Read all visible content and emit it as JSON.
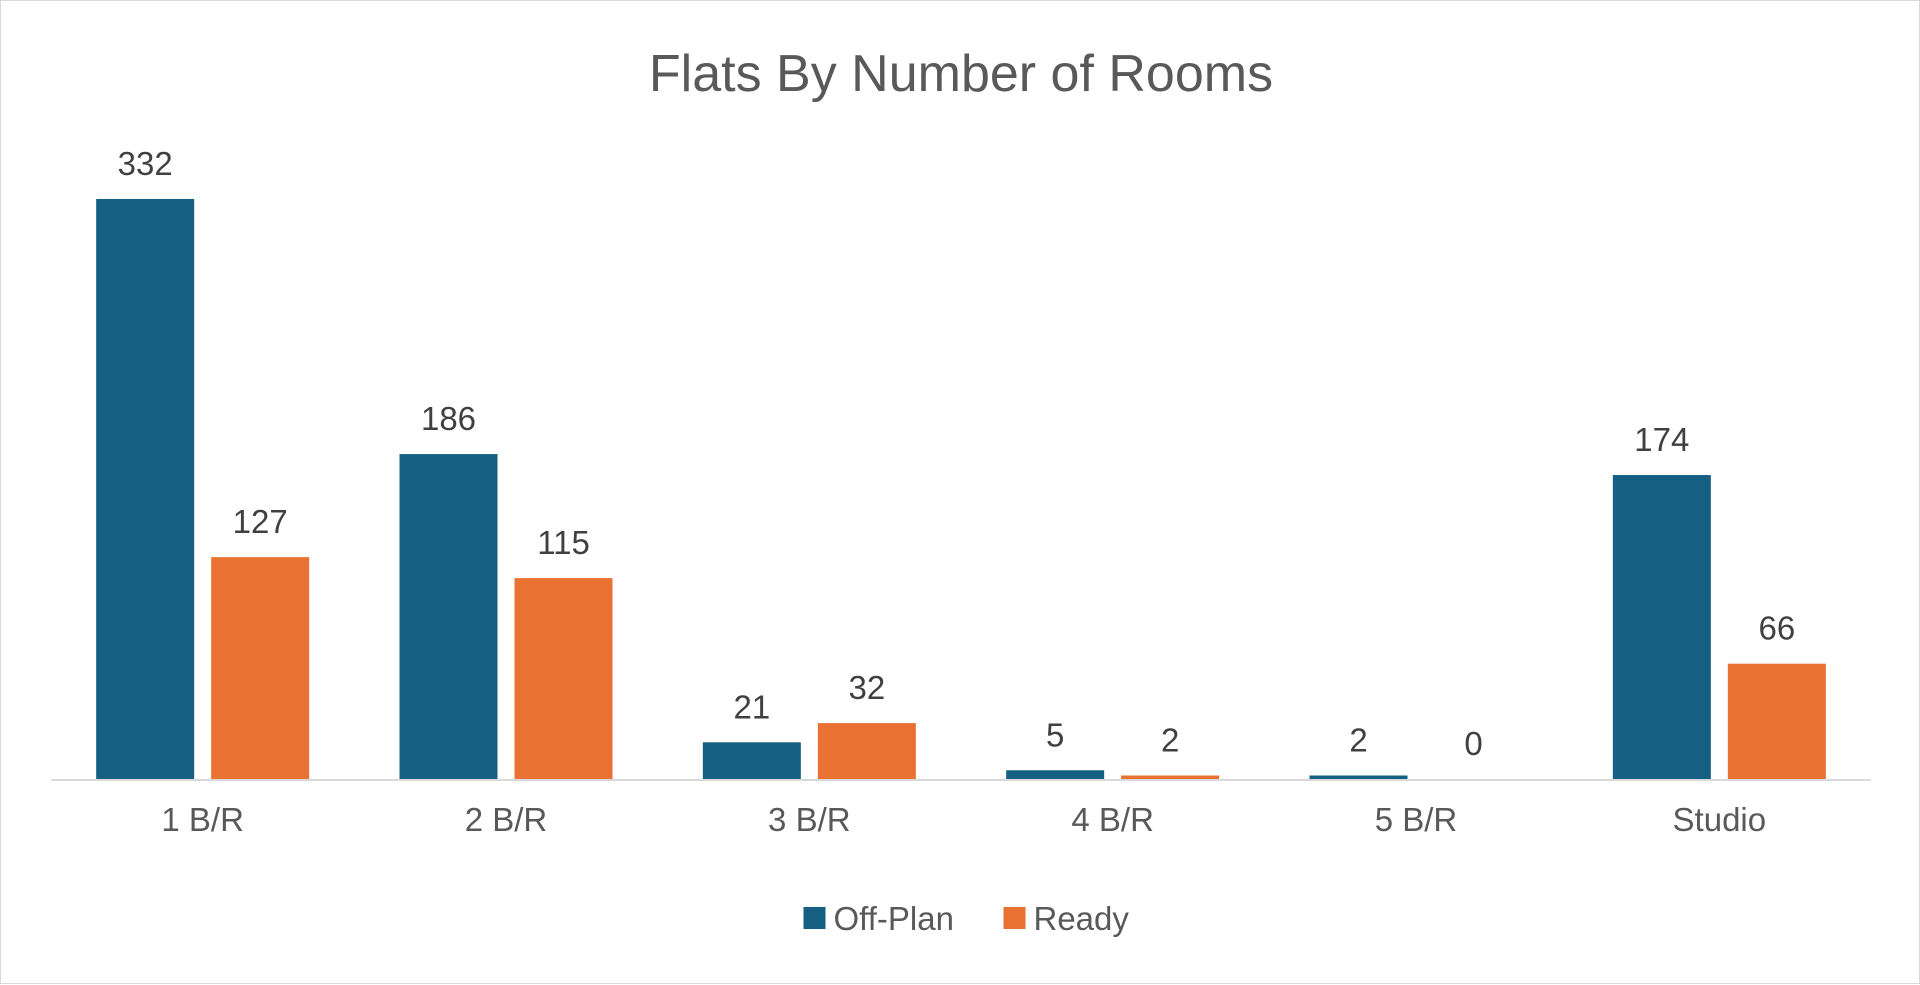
{
  "chart_data": {
    "type": "bar",
    "title": "Flats By Number of Rooms",
    "xlabel": "",
    "ylabel": "",
    "categories": [
      "1 B/R",
      "2 B/R",
      "3 B/R",
      "4 B/R",
      "5 B/R",
      "Studio"
    ],
    "series": [
      {
        "name": "Off-Plan",
        "color": "#156082",
        "values": [
          332,
          186,
          21,
          5,
          2,
          174
        ]
      },
      {
        "name": "Ready",
        "color": "#E97132",
        "values": [
          127,
          115,
          32,
          2,
          0,
          66
        ]
      }
    ],
    "ylim": [
      0,
      332
    ],
    "grid": false,
    "legend": "bottom",
    "data_labels": true,
    "axis_color": "#d9d9d9"
  }
}
